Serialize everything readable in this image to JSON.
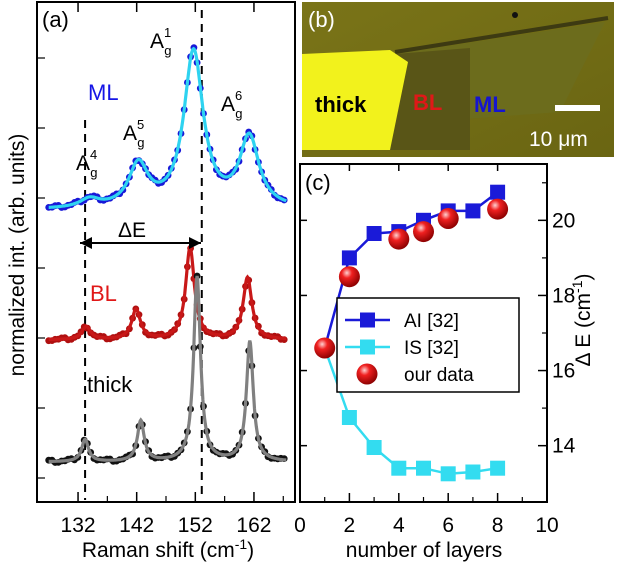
{
  "chart_data": [
    {
      "panel_label": "(a)",
      "type": "line",
      "xlabel": "Raman shift (cm",
      "xlabel_sup": "-1",
      "xlabel_close": ")",
      "ylabel": "normalized int. (arb. units)",
      "xlim": [
        125,
        169
      ],
      "xticks": [
        132,
        142,
        152,
        162
      ],
      "dashed_lines_x": [
        133.2,
        153.1
      ],
      "delta_label": "ΔE",
      "peaks": [
        {
          "label": "A",
          "sub": "g",
          "sup": "4",
          "x": 134.0
        },
        {
          "label": "A",
          "sub": "g",
          "sup": "5",
          "x": 142.3
        },
        {
          "label": "A",
          "sub": "g",
          "sup": "1",
          "x": 151.7
        },
        {
          "label": "A",
          "sub": "g",
          "sup": "6",
          "x": 161.2
        }
      ],
      "series": [
        {
          "name": "ML",
          "label_color": "#1515e6",
          "dot_color": "#1818d8",
          "fit_color": "#2ed3f0",
          "peak_positions": [
            134.0,
            142.3,
            151.7,
            161.2
          ],
          "peak_heights": [
            0.05,
            0.25,
            0.92,
            0.41
          ]
        },
        {
          "name": "BL",
          "label_color": "#e01818",
          "dot_color": "#b01010",
          "fit_color": "#c81818",
          "peak_positions": [
            133.4,
            141.9,
            151.1,
            160.9
          ],
          "peak_heights": [
            0.13,
            0.3,
            0.92,
            0.62
          ]
        },
        {
          "name": "thick",
          "label_color": "#000000",
          "dot_color": "#111111",
          "fit_color": "#808080",
          "peak_positions": [
            133.2,
            142.7,
            152.3,
            161.3
          ],
          "peak_heights": [
            0.12,
            0.22,
            1.0,
            0.65
          ]
        }
      ]
    },
    {
      "panel_label": "(b)",
      "type": "image",
      "labels": [
        {
          "text": "thick",
          "color": "#000000"
        },
        {
          "text": "BL",
          "color": "#e01818"
        },
        {
          "text": "ML",
          "color": "#1515d0"
        }
      ],
      "scale_bar": "10 μm"
    },
    {
      "panel_label": "(c)",
      "type": "scatter",
      "xlabel": "number of layers",
      "ylabel": "Δ E (cm",
      "ylabel_sup": "-1",
      "ylabel_close": ")",
      "xlim": [
        0,
        10
      ],
      "ylim": [
        12.5,
        21.5
      ],
      "xticks": [
        0,
        2,
        4,
        6,
        8,
        10
      ],
      "yticks": [
        14,
        16,
        18,
        20
      ],
      "legend": "center",
      "series": [
        {
          "name": "AI [32]",
          "color": "#1a1ad8",
          "marker": "square",
          "line": true,
          "x": [
            1,
            2,
            3,
            4,
            5,
            6,
            7,
            8
          ],
          "y": [
            16.6,
            19.0,
            19.65,
            19.7,
            20.0,
            20.25,
            20.25,
            20.75
          ]
        },
        {
          "name": "IS [32]",
          "color": "#33dcf0",
          "marker": "square",
          "line": true,
          "x": [
            1,
            2,
            3,
            4,
            5,
            6,
            7,
            8
          ],
          "y": [
            16.6,
            14.75,
            13.95,
            13.4,
            13.4,
            13.25,
            13.3,
            13.4
          ]
        },
        {
          "name": "our data",
          "color": "#e8141e",
          "marker": "sphere",
          "line": false,
          "x": [
            1,
            2,
            4,
            5,
            6,
            8
          ],
          "y": [
            16.6,
            18.5,
            19.5,
            19.7,
            20.05,
            20.3
          ]
        }
      ]
    }
  ]
}
